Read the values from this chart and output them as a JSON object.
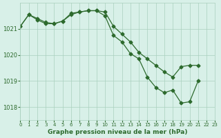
{
  "line_a_x": [
    0,
    1,
    2,
    3,
    4,
    5,
    6,
    7,
    8,
    9,
    10,
    11,
    12,
    13,
    14,
    15,
    16,
    17,
    18,
    19,
    20,
    21
  ],
  "line_a_y": [
    1021.1,
    1021.55,
    1021.35,
    1021.2,
    1021.2,
    1021.3,
    1021.6,
    1021.65,
    1021.7,
    1021.7,
    1021.65,
    1021.1,
    1020.8,
    1020.5,
    1020.1,
    1019.85,
    1019.6,
    1019.35,
    1019.15,
    1019.55,
    1019.6,
    1019.6
  ],
  "line_b_x": [
    0,
    1,
    2,
    3,
    4,
    5,
    6,
    7,
    8,
    9,
    10,
    11,
    12,
    13,
    14,
    15,
    16,
    17,
    18,
    19,
    20,
    21
  ],
  "line_b_y": [
    1021.1,
    1021.55,
    1021.4,
    1021.25,
    1021.2,
    1021.3,
    1021.55,
    1021.65,
    1021.7,
    1021.7,
    1021.5,
    1020.75,
    1020.5,
    1020.05,
    1019.85,
    1019.15,
    1018.75,
    1018.55,
    1018.65,
    1018.15,
    1018.2,
    1019.0
  ],
  "line_color": "#2d6a2d",
  "background_color": "#d8f0e8",
  "grid_color": "#aacfbe",
  "xlabel": "Graphe pression niveau de la mer (hPa)",
  "ylim": [
    1017.5,
    1022.0
  ],
  "xlim": [
    0,
    23
  ],
  "yticks": [
    1018,
    1019,
    1020,
    1021
  ],
  "xticks": [
    0,
    1,
    2,
    3,
    4,
    5,
    6,
    7,
    8,
    9,
    10,
    11,
    12,
    13,
    14,
    15,
    16,
    17,
    18,
    19,
    20,
    21,
    22,
    23
  ]
}
